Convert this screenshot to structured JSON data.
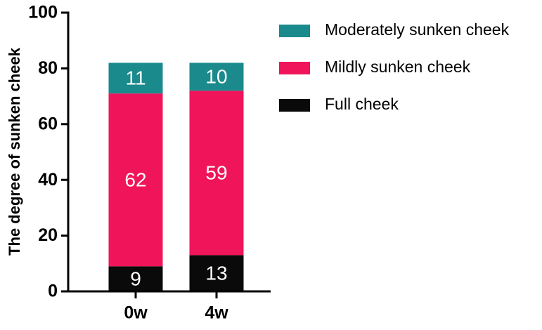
{
  "chart_data": {
    "type": "stacked_bar",
    "y_label": "The degree of sunken cheek",
    "categories": [
      "0w",
      "4w"
    ],
    "series": [
      {
        "name": "Full cheek",
        "color": "#0a0a0a",
        "values": [
          9,
          13
        ]
      },
      {
        "name": "Mildly sunken cheek",
        "color": "#f0145a",
        "values": [
          62,
          59
        ]
      },
      {
        "name": "Moderately sunken cheek",
        "color": "#1b8a8c",
        "values": [
          11,
          10
        ]
      }
    ],
    "ylim": [
      0,
      100
    ],
    "yticks": [
      0,
      20,
      40,
      60,
      80,
      100
    ],
    "legend": "right"
  }
}
